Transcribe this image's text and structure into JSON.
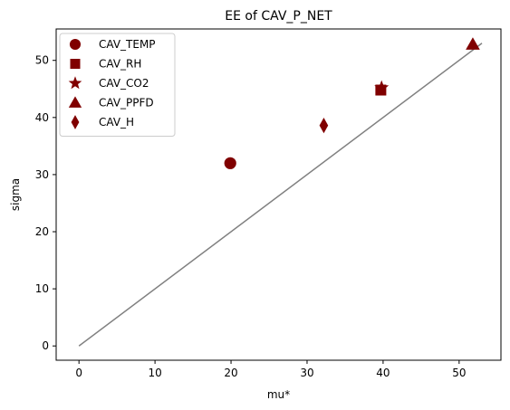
{
  "chart_data": {
    "type": "scatter",
    "title": "EE of CAV_P_NET",
    "xlabel": "mu*",
    "ylabel": "sigma",
    "xlim": [
      -3,
      55.5
    ],
    "ylim": [
      -2.5,
      55.5
    ],
    "xticks": [
      0,
      10,
      20,
      30,
      40,
      50
    ],
    "yticks": [
      0,
      10,
      20,
      30,
      40,
      50
    ],
    "grid": false,
    "legend_position": "top-left",
    "marker_color": "#800000",
    "series": [
      {
        "name": "CAV_TEMP",
        "marker": "circle",
        "x": [
          19.9
        ],
        "y": [
          32.0
        ]
      },
      {
        "name": "CAV_RH",
        "marker": "square",
        "x": [
          39.7
        ],
        "y": [
          44.8
        ]
      },
      {
        "name": "CAV_CO2",
        "marker": "star",
        "x": [
          39.8
        ],
        "y": [
          45.2
        ]
      },
      {
        "name": "CAV_PPFD",
        "marker": "triangle",
        "x": [
          51.8
        ],
        "y": [
          52.8
        ]
      },
      {
        "name": "CAV_H",
        "marker": "diamond",
        "x": [
          32.2
        ],
        "y": [
          38.6
        ]
      }
    ],
    "reference_line": {
      "x": [
        0,
        53
      ],
      "y": [
        0,
        53
      ],
      "color": "#808080"
    }
  }
}
